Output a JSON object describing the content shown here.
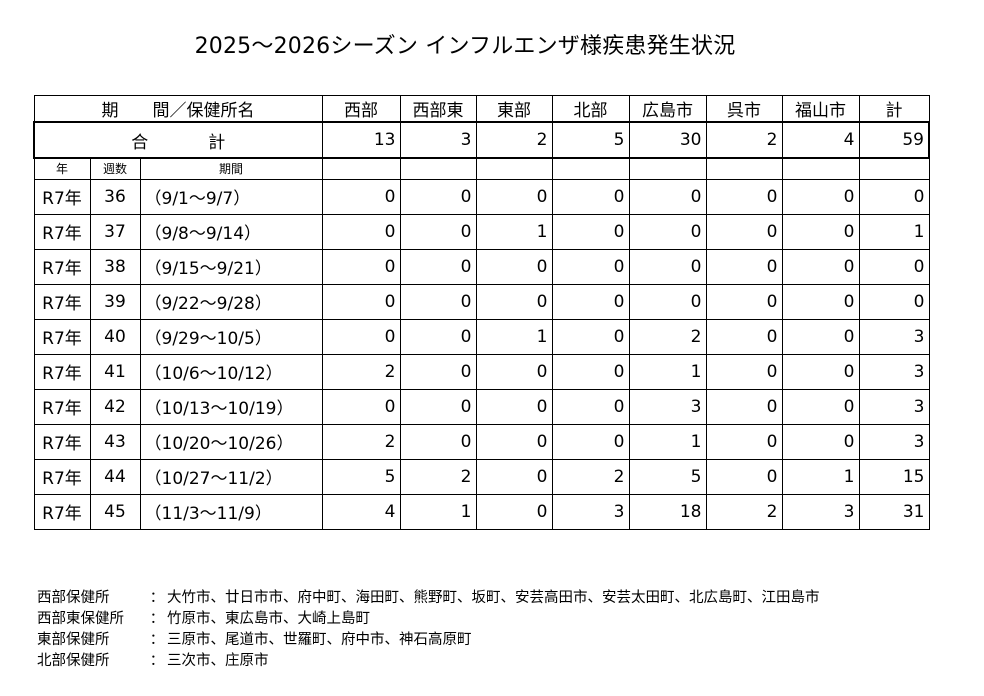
{
  "title": "2025～2026シーズン インフルエンザ様疾患発生状況",
  "header": {
    "period_label": "期　　間／保健所名",
    "columns": [
      "西部",
      "西部東",
      "東部",
      "北部",
      "広島市",
      "呉市",
      "福山市",
      "計"
    ]
  },
  "total": {
    "label_a": "合",
    "label_b": "計",
    "values": [
      "13",
      "3",
      "2",
      "5",
      "30",
      "2",
      "4",
      "59"
    ]
  },
  "subheader": {
    "year": "年",
    "week": "週数",
    "period": "期間"
  },
  "rows": [
    {
      "year": "R7年",
      "week": "36",
      "period": "（9/1～9/7）",
      "values": [
        "0",
        "0",
        "0",
        "0",
        "0",
        "0",
        "0",
        "0"
      ]
    },
    {
      "year": "R7年",
      "week": "37",
      "period": "（9/8～9/14）",
      "values": [
        "0",
        "0",
        "1",
        "0",
        "0",
        "0",
        "0",
        "1"
      ]
    },
    {
      "year": "R7年",
      "week": "38",
      "period": "（9/15～9/21）",
      "values": [
        "0",
        "0",
        "0",
        "0",
        "0",
        "0",
        "0",
        "0"
      ]
    },
    {
      "year": "R7年",
      "week": "39",
      "period": "（9/22～9/28）",
      "values": [
        "0",
        "0",
        "0",
        "0",
        "0",
        "0",
        "0",
        "0"
      ]
    },
    {
      "year": "R7年",
      "week": "40",
      "period": "（9/29～10/5）",
      "values": [
        "0",
        "0",
        "1",
        "0",
        "2",
        "0",
        "0",
        "3"
      ]
    },
    {
      "year": "R7年",
      "week": "41",
      "period": "（10/6～10/12）",
      "values": [
        "2",
        "0",
        "0",
        "0",
        "1",
        "0",
        "0",
        "3"
      ]
    },
    {
      "year": "R7年",
      "week": "42",
      "period": "（10/13～10/19）",
      "values": [
        "0",
        "0",
        "0",
        "0",
        "3",
        "0",
        "0",
        "3"
      ]
    },
    {
      "year": "R7年",
      "week": "43",
      "period": "（10/20～10/26）",
      "values": [
        "2",
        "0",
        "0",
        "0",
        "1",
        "0",
        "0",
        "3"
      ]
    },
    {
      "year": "R7年",
      "week": "44",
      "period": "（10/27～11/2）",
      "values": [
        "5",
        "2",
        "0",
        "2",
        "5",
        "0",
        "1",
        "15"
      ]
    },
    {
      "year": "R7年",
      "week": "45",
      "period": "（11/3～11/9）",
      "values": [
        "4",
        "1",
        "0",
        "3",
        "18",
        "2",
        "3",
        "31"
      ]
    }
  ],
  "notes": [
    {
      "name": "西部保健所",
      "sep": "：",
      "areas": "大竹市、廿日市市、府中町、海田町、熊野町、坂町、安芸高田市、安芸太田町、北広島町、江田島市"
    },
    {
      "name": "西部東保健所",
      "sep": "：",
      "areas": "竹原市、東広島市、大崎上島町"
    },
    {
      "name": "東部保健所",
      "sep": "：",
      "areas": "三原市、尾道市、世羅町、府中市、神石高原町"
    },
    {
      "name": "北部保健所",
      "sep": "：",
      "areas": "三次市、庄原市"
    }
  ]
}
